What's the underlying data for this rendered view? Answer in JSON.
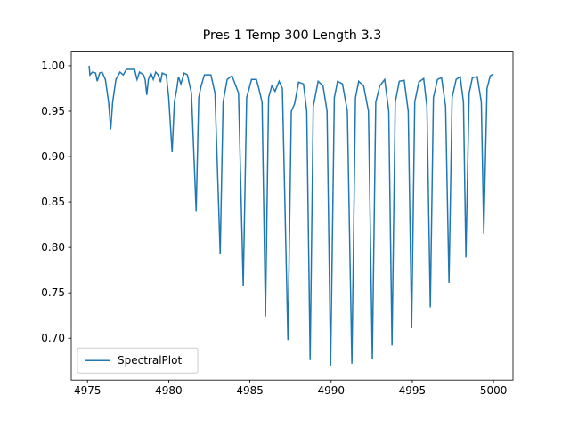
{
  "chart_data": {
    "type": "line",
    "title": "Pres 1 Temp 300 Length 3.3",
    "x": [
      4975.1,
      4975.15,
      4975.3,
      4975.5,
      4975.6,
      4975.75,
      4975.9,
      4976.1,
      4976.3,
      4976.43,
      4976.55,
      4976.75,
      4977.0,
      4977.2,
      4977.4,
      4977.9,
      4978.05,
      4978.2,
      4978.45,
      4978.55,
      4978.65,
      4978.75,
      4978.9,
      4979.05,
      4979.2,
      4979.35,
      4979.5,
      4979.6,
      4979.85,
      4980.0,
      4980.21,
      4980.35,
      4980.5,
      4980.6,
      4980.75,
      4980.95,
      4981.15,
      4981.4,
      4981.69,
      4981.85,
      4982.0,
      4982.2,
      4982.6,
      4982.85,
      4983.17,
      4983.35,
      4983.6,
      4983.9,
      4984.3,
      4984.59,
      4984.8,
      4985.1,
      4985.4,
      4985.55,
      4985.75,
      4985.96,
      4986.15,
      4986.35,
      4986.55,
      4986.8,
      4987.0,
      4987.34,
      4987.55,
      4987.75,
      4988.0,
      4988.3,
      4988.5,
      4988.71,
      4988.9,
      4989.2,
      4989.5,
      4989.75,
      4989.97,
      4990.2,
      4990.4,
      4990.7,
      4991.0,
      4991.28,
      4991.5,
      4991.7,
      4992.0,
      4992.3,
      4992.54,
      4992.75,
      4993.0,
      4993.3,
      4993.55,
      4993.75,
      4993.95,
      4994.2,
      4994.5,
      4994.75,
      4994.96,
      4995.15,
      4995.4,
      4995.7,
      4995.9,
      4996.11,
      4996.3,
      4996.55,
      4996.8,
      4997.05,
      4997.26,
      4997.45,
      4997.7,
      4997.95,
      4998.15,
      4998.3,
      4998.5,
      4998.7,
      4999.0,
      4999.25,
      4999.4,
      4999.6,
      4999.8,
      5000.0
    ],
    "series": [
      {
        "name": "SpectralPlot",
        "color": "#1f77b4",
        "values": [
          1.0,
          0.99,
          0.993,
          0.992,
          0.983,
          0.992,
          0.993,
          0.985,
          0.96,
          0.93,
          0.96,
          0.985,
          0.993,
          0.99,
          0.996,
          0.996,
          0.985,
          0.993,
          0.99,
          0.985,
          0.968,
          0.985,
          0.992,
          0.985,
          0.993,
          0.99,
          0.982,
          0.992,
          0.99,
          0.965,
          0.905,
          0.96,
          0.975,
          0.988,
          0.98,
          0.992,
          0.99,
          0.97,
          0.84,
          0.965,
          0.978,
          0.99,
          0.99,
          0.97,
          0.793,
          0.96,
          0.985,
          0.989,
          0.97,
          0.758,
          0.965,
          0.985,
          0.985,
          0.975,
          0.96,
          0.724,
          0.965,
          0.978,
          0.972,
          0.983,
          0.975,
          0.698,
          0.95,
          0.958,
          0.982,
          0.98,
          0.95,
          0.676,
          0.955,
          0.983,
          0.978,
          0.95,
          0.67,
          0.965,
          0.983,
          0.98,
          0.95,
          0.672,
          0.965,
          0.983,
          0.978,
          0.95,
          0.677,
          0.96,
          0.978,
          0.985,
          0.95,
          0.692,
          0.96,
          0.983,
          0.984,
          0.95,
          0.711,
          0.96,
          0.982,
          0.986,
          0.955,
          0.734,
          0.965,
          0.985,
          0.987,
          0.955,
          0.761,
          0.965,
          0.985,
          0.988,
          0.96,
          0.789,
          0.97,
          0.987,
          0.988,
          0.96,
          0.815,
          0.975,
          0.989,
          0.991
        ]
      }
    ],
    "xlim": [
      4974.0,
      5001.2
    ],
    "ylim": [
      0.654,
      1.016
    ],
    "xticks": [
      4975,
      4980,
      4985,
      4990,
      4995,
      5000
    ],
    "yticks": [
      {
        "value": 0.7,
        "label": "0.70"
      },
      {
        "value": 0.75,
        "label": "0.75"
      },
      {
        "value": 0.8,
        "label": "0.80"
      },
      {
        "value": 0.85,
        "label": "0.85"
      },
      {
        "value": 0.9,
        "label": "0.90"
      },
      {
        "value": 0.95,
        "label": "0.95"
      },
      {
        "value": 1.0,
        "label": "1.00"
      }
    ],
    "legend": "lower left"
  }
}
